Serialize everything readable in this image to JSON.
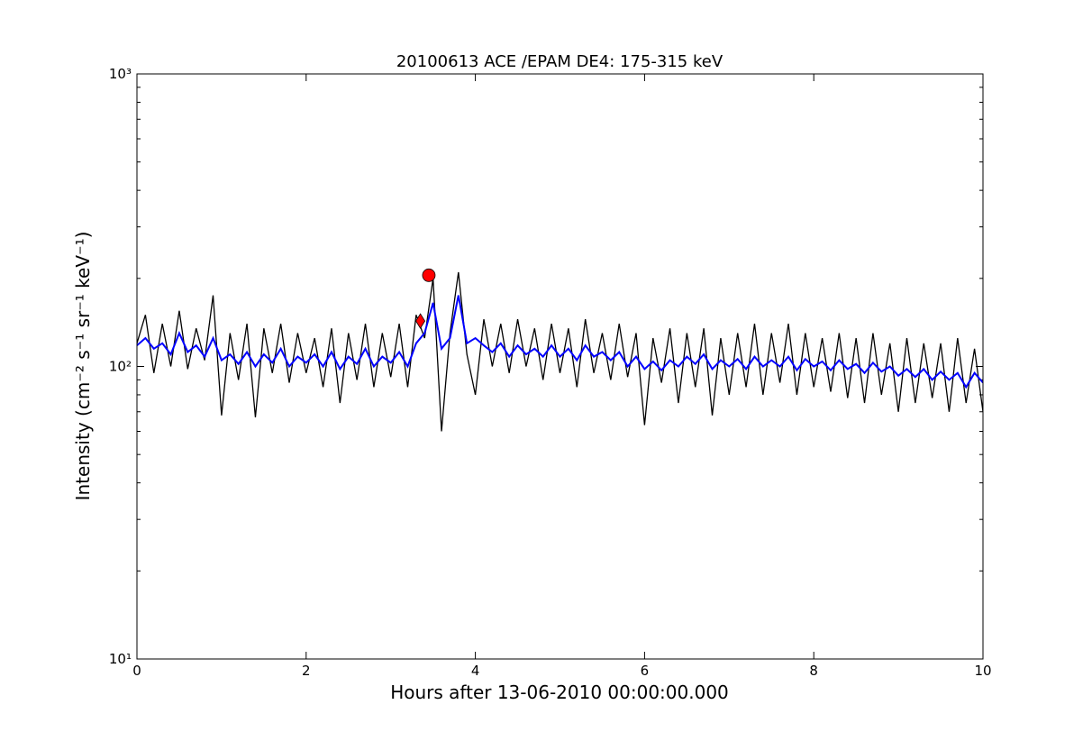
{
  "chart_data": {
    "type": "line",
    "title": "20100613 ACE /EPAM DE4: 175-315 keV",
    "xlabel": "Hours after 13-06-2010 00:00:00.000",
    "ylabel": "Intensity (cm⁻² s⁻¹ sr⁻¹ keV⁻¹)",
    "log_y": true,
    "grid": false,
    "xlim": [
      0,
      10
    ],
    "ylim": [
      10,
      1000
    ],
    "xticks": [
      0,
      2,
      4,
      6,
      8,
      10
    ],
    "yticks": [
      {
        "value": 10,
        "label": "10¹"
      },
      {
        "value": 100,
        "label": "10²"
      },
      {
        "value": 1000,
        "label": "10³"
      }
    ],
    "yminorticks": [
      20,
      30,
      40,
      50,
      60,
      70,
      80,
      90,
      200,
      300,
      400,
      500,
      600,
      700,
      800,
      900
    ],
    "x": [
      0,
      0.1,
      0.2,
      0.3,
      0.4,
      0.5,
      0.6,
      0.7,
      0.8,
      0.9,
      1,
      1.1,
      1.2,
      1.3,
      1.4,
      1.5,
      1.6,
      1.7,
      1.8,
      1.9,
      2,
      2.1,
      2.2,
      2.3,
      2.4,
      2.5,
      2.6,
      2.7,
      2.8,
      2.9,
      3,
      3.1,
      3.2,
      3.3,
      3.4,
      3.5,
      3.6,
      3.7,
      3.8,
      3.9,
      4,
      4.1,
      4.2,
      4.3,
      4.4,
      4.5,
      4.6,
      4.7,
      4.8,
      4.9,
      5,
      5.1,
      5.2,
      5.3,
      5.4,
      5.5,
      5.6,
      5.7,
      5.8,
      5.9,
      6,
      6.1,
      6.2,
      6.3,
      6.4,
      6.5,
      6.6,
      6.7,
      6.8,
      6.9,
      7,
      7.1,
      7.2,
      7.3,
      7.4,
      7.5,
      7.6,
      7.7,
      7.8,
      7.9,
      8,
      8.1,
      8.2,
      8.3,
      8.4,
      8.5,
      8.6,
      8.7,
      8.8,
      8.9,
      9,
      9.1,
      9.2,
      9.3,
      9.4,
      9.5,
      9.6,
      9.7,
      9.8,
      9.9,
      10
    ],
    "series": [
      {
        "color": "#000000",
        "values": [
          120,
          150,
          95,
          140,
          100,
          155,
          98,
          135,
          105,
          175,
          68,
          130,
          90,
          140,
          67,
          135,
          95,
          140,
          88,
          130,
          95,
          125,
          85,
          135,
          75,
          130,
          90,
          140,
          85,
          130,
          92,
          140,
          85,
          150,
          125,
          200,
          60,
          130,
          210,
          110,
          80,
          145,
          100,
          140,
          95,
          145,
          100,
          135,
          90,
          140,
          95,
          135,
          85,
          145,
          95,
          130,
          90,
          140,
          92,
          130,
          63,
          125,
          88,
          135,
          75,
          130,
          85,
          135,
          68,
          125,
          80,
          130,
          85,
          140,
          80,
          130,
          88,
          140,
          80,
          130,
          85,
          125,
          82,
          130,
          78,
          125,
          75,
          130,
          80,
          120,
          70,
          125,
          75,
          120,
          78,
          120,
          70,
          125,
          75,
          115,
          70
        ]
      },
      {
        "color": "#0000ff",
        "values": [
          118,
          125,
          115,
          120,
          110,
          130,
          112,
          118,
          108,
          125,
          105,
          110,
          102,
          112,
          100,
          110,
          103,
          115,
          100,
          108,
          103,
          110,
          100,
          112,
          98,
          108,
          102,
          115,
          100,
          108,
          103,
          112,
          100,
          120,
          130,
          165,
          115,
          125,
          175,
          120,
          125,
          118,
          112,
          120,
          108,
          118,
          110,
          115,
          108,
          118,
          108,
          115,
          105,
          118,
          108,
          112,
          105,
          112,
          100,
          108,
          98,
          104,
          97,
          105,
          100,
          108,
          102,
          110,
          98,
          105,
          100,
          106,
          98,
          108,
          100,
          105,
          100,
          108,
          97,
          106,
          100,
          104,
          97,
          105,
          98,
          102,
          95,
          103,
          96,
          100,
          93,
          98,
          92,
          98,
          90,
          96,
          90,
          95,
          85,
          95,
          88
        ]
      }
    ],
    "markers": [
      {
        "x": 3.45,
        "y": 205,
        "shape": "circle",
        "color": "#ff0000"
      },
      {
        "x": 3.35,
        "y": 143,
        "shape": "diamond",
        "color": "#ff0000"
      }
    ]
  }
}
